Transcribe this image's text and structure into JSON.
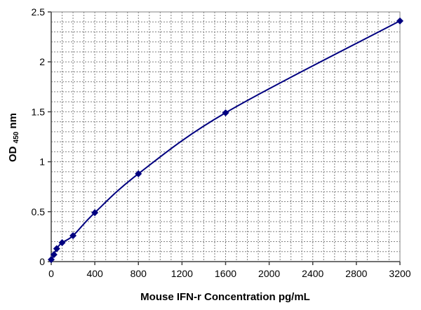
{
  "chart_data": {
    "type": "line",
    "title": "",
    "xlabel": "Mouse IFN-r Concentration pg/mL",
    "ylabel": "OD 450 nm",
    "ylabel_parts": {
      "pre": "OD",
      "sub": "450",
      "post": " nm"
    },
    "x": [
      0,
      25,
      50,
      100,
      200,
      400,
      800,
      1600,
      3200
    ],
    "y": [
      0.02,
      0.07,
      0.13,
      0.19,
      0.26,
      0.49,
      0.88,
      1.49,
      2.41
    ],
    "xlim": [
      0,
      3200
    ],
    "ylim": [
      0,
      2.5
    ],
    "x_major_ticks": [
      0,
      400,
      800,
      1200,
      1600,
      2000,
      2400,
      2800,
      3200
    ],
    "y_major_ticks": [
      "0",
      "0.5",
      "1",
      "1.5",
      "2",
      "2.5"
    ],
    "x_minor_grid_step": 100,
    "y_minor_grid_step": 0.1,
    "grid_style": "dashed",
    "legend": "none",
    "marker": "diamond",
    "colors": {
      "series": "#000080",
      "marker": "#000080",
      "grid": "#808080",
      "axis": "#404040",
      "plot_border": "#808080",
      "background": "#ffffff",
      "text": "#000000"
    }
  }
}
